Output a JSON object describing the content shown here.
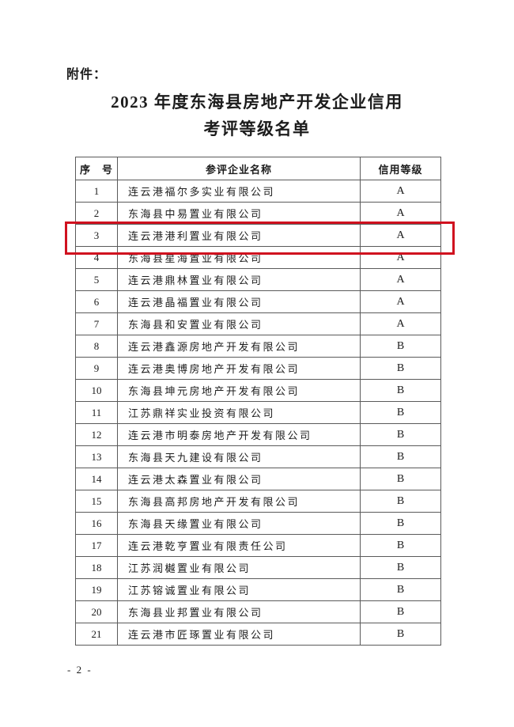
{
  "page": {
    "attachment_label": "附件：",
    "title_line1": "2023 年度东海县房地产开发企业信用",
    "title_line2": "考评等级名单",
    "page_number": "- 2 -"
  },
  "table": {
    "headers": [
      "序　号",
      "参评企业名称",
      "信用等级"
    ],
    "rows": [
      {
        "no": "1",
        "name": "连云港福尔多实业有限公司",
        "rating": "A",
        "highlighted": false
      },
      {
        "no": "2",
        "name": "东海县中易置业有限公司",
        "rating": "A",
        "highlighted": false
      },
      {
        "no": "3",
        "name": "连云港港利置业有限公司",
        "rating": "A",
        "highlighted": true
      },
      {
        "no": "4",
        "name": "东海县星海置业有限公司",
        "rating": "A",
        "highlighted": false
      },
      {
        "no": "5",
        "name": "连云港鼎林置业有限公司",
        "rating": "A",
        "highlighted": false
      },
      {
        "no": "6",
        "name": "连云港晶福置业有限公司",
        "rating": "A",
        "highlighted": false
      },
      {
        "no": "7",
        "name": "东海县和安置业有限公司",
        "rating": "A",
        "highlighted": false
      },
      {
        "no": "8",
        "name": "连云港鑫源房地产开发有限公司",
        "rating": "B",
        "highlighted": false
      },
      {
        "no": "9",
        "name": "连云港奥博房地产开发有限公司",
        "rating": "B",
        "highlighted": false
      },
      {
        "no": "10",
        "name": "东海县坤元房地产开发有限公司",
        "rating": "B",
        "highlighted": false
      },
      {
        "no": "11",
        "name": "江苏鼎祥实业投资有限公司",
        "rating": "B",
        "highlighted": false
      },
      {
        "no": "12",
        "name": "连云港市明泰房地产开发有限公司",
        "rating": "B",
        "highlighted": false
      },
      {
        "no": "13",
        "name": "东海县天九建设有限公司",
        "rating": "B",
        "highlighted": false
      },
      {
        "no": "14",
        "name": "连云港太森置业有限公司",
        "rating": "B",
        "highlighted": false
      },
      {
        "no": "15",
        "name": "东海县高邦房地产开发有限公司",
        "rating": "B",
        "highlighted": false
      },
      {
        "no": "16",
        "name": "东海县天缘置业有限公司",
        "rating": "B",
        "highlighted": false
      },
      {
        "no": "17",
        "name": "连云港乾亨置业有限责任公司",
        "rating": "B",
        "highlighted": false
      },
      {
        "no": "18",
        "name": "江苏润樾置业有限公司",
        "rating": "B",
        "highlighted": false
      },
      {
        "no": "19",
        "name": "江苏镕诚置业有限公司",
        "rating": "B",
        "highlighted": false
      },
      {
        "no": "20",
        "name": "东海县业邦置业有限公司",
        "rating": "B",
        "highlighted": false
      },
      {
        "no": "21",
        "name": "连云港市匠琢置业有限公司",
        "rating": "B",
        "highlighted": false
      }
    ]
  },
  "highlight": {
    "color": "#d0111f",
    "highlighted_row_no": "3"
  }
}
